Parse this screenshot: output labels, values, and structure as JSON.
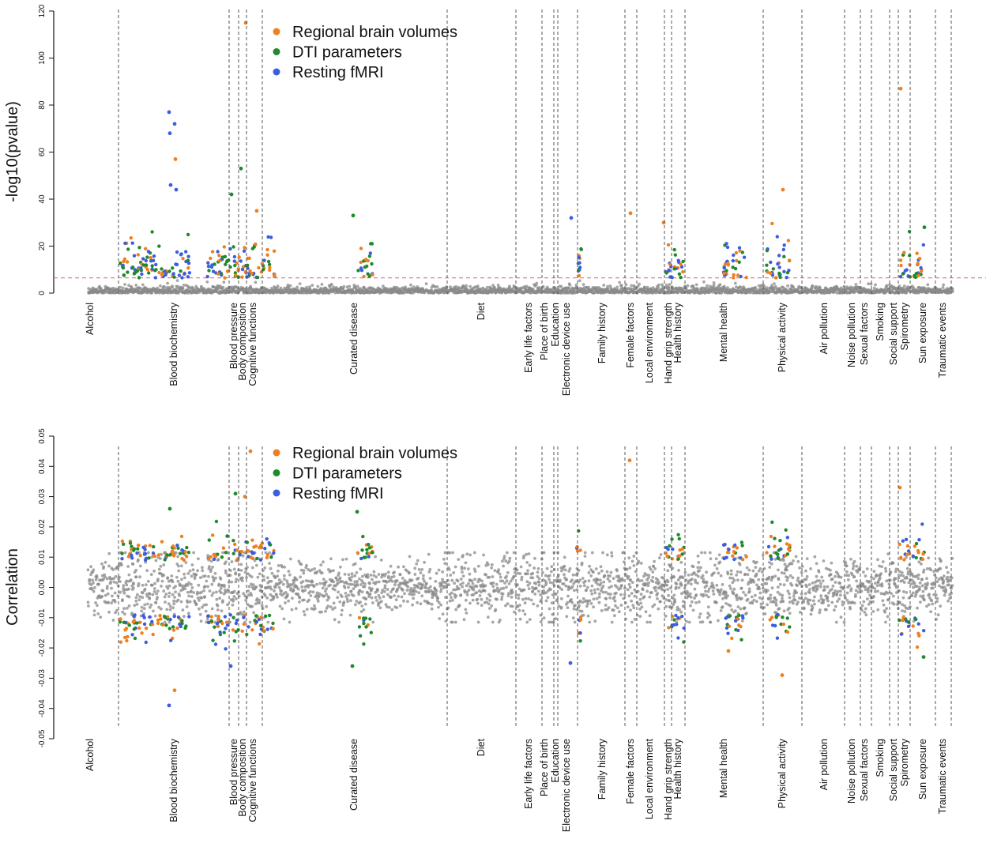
{
  "colors": {
    "regional": "#f07f1f",
    "dti": "#1f8a2a",
    "fmri": "#3b5de0",
    "background_points": "#8a8a8a",
    "threshold": "#e0708a"
  },
  "legend": [
    {
      "label": "Regional brain volumes",
      "color": "#f07f1f"
    },
    {
      "label": "DTI parameters",
      "color": "#1f8a2a"
    },
    {
      "label": "Resting fMRI",
      "color": "#3b5de0"
    }
  ],
  "categories": [
    "Alcohol",
    "Blood biochemistry",
    "Blood pressure",
    "Body composition",
    "Cognitive functions",
    "Curated disease",
    "Diet",
    "Early life factors",
    "Place of birth",
    "Education",
    "Electronic device use",
    "Family history",
    "Female factors",
    "Local environment",
    "Hand grip strength",
    "Health history",
    "Mental health",
    "Physical activity",
    "Air pollution",
    "Noise pollution",
    "Sexual factors",
    "Smoking",
    "Social support",
    "Spirometry",
    "Sun exposure",
    "Traumatic events"
  ],
  "chart_data": [
    {
      "type": "scatter",
      "ylabel": "-log10(pvalue)",
      "ylim": [
        0,
        120
      ],
      "yticks": [
        "0",
        "20",
        "40",
        "60",
        "80",
        "100",
        "120"
      ],
      "threshold": 6.5,
      "highlight_points": [
        {
          "category": "Blood biochemistry",
          "series": "Resting fMRI",
          "y": 77
        },
        {
          "category": "Blood biochemistry",
          "series": "Resting fMRI",
          "y": 72
        },
        {
          "category": "Blood biochemistry",
          "series": "Resting fMRI",
          "y": 68
        },
        {
          "category": "Blood biochemistry",
          "series": "Regional brain volumes",
          "y": 57
        },
        {
          "category": "Blood biochemistry",
          "series": "Resting fMRI",
          "y": 46
        },
        {
          "category": "Blood biochemistry",
          "series": "Resting fMRI",
          "y": 44
        },
        {
          "category": "Blood pressure",
          "series": "DTI parameters",
          "y": 42
        },
        {
          "category": "Body composition",
          "series": "Regional brain volumes",
          "y": 115
        },
        {
          "category": "Body composition",
          "series": "DTI parameters",
          "y": 53
        },
        {
          "category": "Cognitive functions",
          "series": "Regional brain volumes",
          "y": 35
        },
        {
          "category": "Curated disease",
          "series": "DTI parameters",
          "y": 33
        },
        {
          "category": "Electronic device use",
          "series": "Resting fMRI",
          "y": 32
        },
        {
          "category": "Female factors",
          "series": "Regional brain volumes",
          "y": 34
        },
        {
          "category": "Hand grip strength",
          "series": "Regional brain volumes",
          "y": 30
        },
        {
          "category": "Physical activity",
          "series": "Regional brain volumes",
          "y": 44
        },
        {
          "category": "Spirometry",
          "series": "Regional brain volumes",
          "y": 87
        },
        {
          "category": "Sun exposure",
          "series": "DTI parameters",
          "y": 28
        }
      ]
    },
    {
      "type": "scatter",
      "ylabel": "Correlation",
      "ylim": [
        -0.05,
        0.05
      ],
      "yticks": [
        "-0.05",
        "-0.04",
        "-0.03",
        "-0.02",
        "-0.01",
        "0.00",
        "0.01",
        "0.02",
        "0.03",
        "0.04",
        "0.05"
      ],
      "highlight_points": [
        {
          "category": "Blood biochemistry",
          "series": "Resting fMRI",
          "y": -0.039
        },
        {
          "category": "Blood biochemistry",
          "series": "Regional brain volumes",
          "y": -0.034
        },
        {
          "category": "Blood biochemistry",
          "series": "DTI parameters",
          "y": 0.026
        },
        {
          "category": "Blood pressure",
          "series": "DTI parameters",
          "y": 0.031
        },
        {
          "category": "Blood pressure",
          "series": "Resting fMRI",
          "y": -0.026
        },
        {
          "category": "Body composition",
          "series": "Regional brain volumes",
          "y": 0.03
        },
        {
          "category": "Cognitive functions",
          "series": "Regional brain volumes",
          "y": 0.045
        },
        {
          "category": "Curated disease",
          "series": "DTI parameters",
          "y": 0.025
        },
        {
          "category": "Curated disease",
          "series": "DTI parameters",
          "y": -0.026
        },
        {
          "category": "Electronic device use",
          "series": "Resting fMRI",
          "y": -0.025
        },
        {
          "category": "Female factors",
          "series": "Regional brain volumes",
          "y": 0.042
        },
        {
          "category": "Mental health",
          "series": "Regional brain volumes",
          "y": -0.021
        },
        {
          "category": "Physical activity",
          "series": "Regional brain volumes",
          "y": -0.029
        },
        {
          "category": "Spirometry",
          "series": "Regional brain volumes",
          "y": 0.033
        },
        {
          "category": "Sun exposure",
          "series": "DTI parameters",
          "y": -0.023
        }
      ]
    }
  ]
}
